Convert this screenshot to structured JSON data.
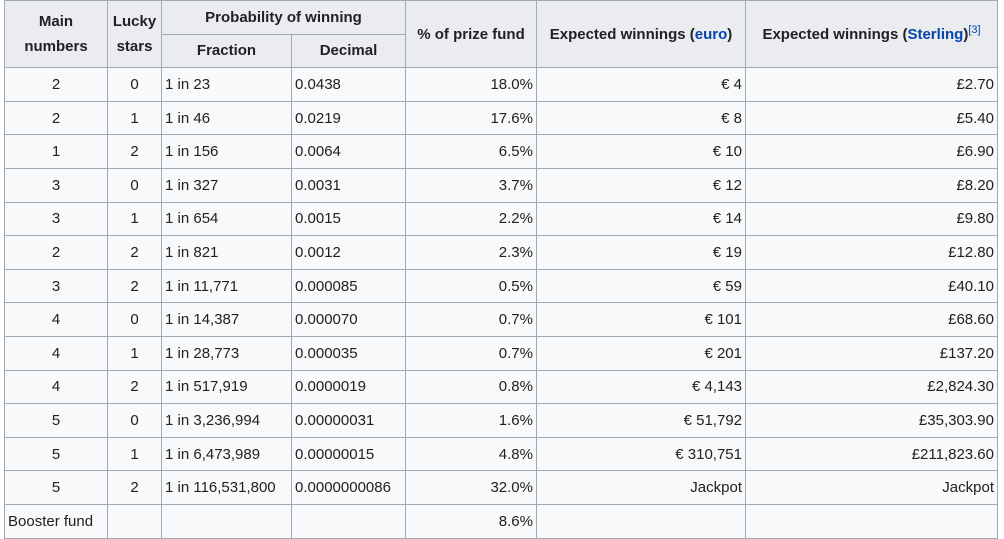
{
  "headers": {
    "main_numbers": "Main numbers",
    "lucky_stars": "Lucky stars",
    "probability": "Probability of winning",
    "fraction": "Fraction",
    "decimal": "Decimal",
    "prize_fund": "% of prize fund",
    "exp_euro_prefix": "Expected winnings (",
    "exp_euro_link": "euro",
    "exp_euro_suffix": ")",
    "exp_sterling_prefix": "Expected winnings (",
    "exp_sterling_link": "Sterling",
    "exp_sterling_suffix": ")",
    "exp_sterling_ref": "[3]"
  },
  "rows": [
    {
      "main": "2",
      "stars": "0",
      "fraction": "1 in 23",
      "decimal": "0.0438",
      "pct": "18.0%",
      "euro": "€ 4",
      "sterling": "£2.70"
    },
    {
      "main": "2",
      "stars": "1",
      "fraction": "1 in 46",
      "decimal": "0.0219",
      "pct": "17.6%",
      "euro": "€ 8",
      "sterling": "£5.40"
    },
    {
      "main": "1",
      "stars": "2",
      "fraction": "1 in 156",
      "decimal": "0.0064",
      "pct": "6.5%",
      "euro": "€ 10",
      "sterling": "£6.90"
    },
    {
      "main": "3",
      "stars": "0",
      "fraction": "1 in 327",
      "decimal": "0.0031",
      "pct": "3.7%",
      "euro": "€ 12",
      "sterling": "£8.20"
    },
    {
      "main": "3",
      "stars": "1",
      "fraction": "1 in 654",
      "decimal": "0.0015",
      "pct": "2.2%",
      "euro": "€ 14",
      "sterling": "£9.80"
    },
    {
      "main": "2",
      "stars": "2",
      "fraction": "1 in 821",
      "decimal": "0.0012",
      "pct": "2.3%",
      "euro": "€ 19",
      "sterling": "£12.80"
    },
    {
      "main": "3",
      "stars": "2",
      "fraction": "1 in 11,771",
      "decimal": "0.000085",
      "pct": "0.5%",
      "euro": "€ 59",
      "sterling": "£40.10"
    },
    {
      "main": "4",
      "stars": "0",
      "fraction": "1 in 14,387",
      "decimal": "0.000070",
      "pct": "0.7%",
      "euro": "€ 101",
      "sterling": "£68.60"
    },
    {
      "main": "4",
      "stars": "1",
      "fraction": "1 in 28,773",
      "decimal": "0.000035",
      "pct": "0.7%",
      "euro": "€ 201",
      "sterling": "£137.20"
    },
    {
      "main": "4",
      "stars": "2",
      "fraction": "1 in 517,919",
      "decimal": "0.0000019",
      "pct": "0.8%",
      "euro": "€ 4,143",
      "sterling": "£2,824.30"
    },
    {
      "main": "5",
      "stars": "0",
      "fraction": "1 in 3,236,994",
      "decimal": "0.00000031",
      "pct": "1.6%",
      "euro": "€ 51,792",
      "sterling": "£35,303.90"
    },
    {
      "main": "5",
      "stars": "1",
      "fraction": "1 in 6,473,989",
      "decimal": "0.00000015",
      "pct": "4.8%",
      "euro": "€ 310,751",
      "sterling": "£211,823.60"
    },
    {
      "main": "5",
      "stars": "2",
      "fraction": "1 in 116,531,800",
      "decimal": "0.0000000086",
      "pct": "32.0%",
      "euro": "Jackpot",
      "sterling": "Jackpot"
    }
  ],
  "booster": {
    "label": "Booster fund",
    "stars": "",
    "fraction": "",
    "decimal": "",
    "pct": "8.6%",
    "euro": "",
    "sterling": ""
  }
}
